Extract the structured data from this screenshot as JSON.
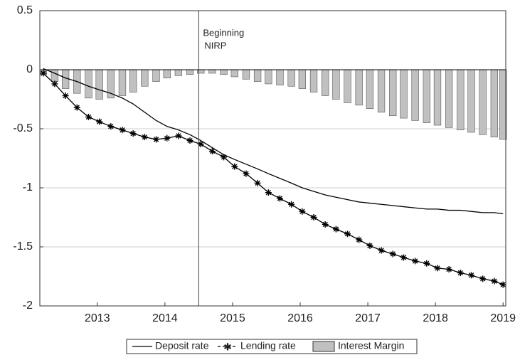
{
  "chart_data": {
    "type": "line",
    "annotation": {
      "x": 2014.5,
      "lines": [
        "Beginning",
        "NIRP"
      ]
    },
    "x": [
      2012.2,
      2012.37,
      2012.53,
      2012.7,
      2012.87,
      2013.03,
      2013.2,
      2013.37,
      2013.53,
      2013.7,
      2013.87,
      2014.03,
      2014.2,
      2014.37,
      2014.53,
      2014.7,
      2014.87,
      2015.03,
      2015.2,
      2015.37,
      2015.53,
      2015.7,
      2015.87,
      2016.03,
      2016.2,
      2016.37,
      2016.53,
      2016.7,
      2016.87,
      2017.03,
      2017.2,
      2017.37,
      2017.53,
      2017.7,
      2017.87,
      2018.03,
      2018.2,
      2018.37,
      2018.53,
      2018.7,
      2018.87,
      2019.0
    ],
    "series": [
      {
        "name": "Deposit rate",
        "type": "line",
        "color": "#000000",
        "values": [
          0.01,
          -0.03,
          -0.07,
          -0.1,
          -0.14,
          -0.17,
          -0.2,
          -0.24,
          -0.29,
          -0.36,
          -0.43,
          -0.48,
          -0.51,
          -0.55,
          -0.6,
          -0.66,
          -0.72,
          -0.76,
          -0.8,
          -0.84,
          -0.88,
          -0.92,
          -0.96,
          -1.0,
          -1.03,
          -1.06,
          -1.08,
          -1.1,
          -1.12,
          -1.13,
          -1.14,
          -1.15,
          -1.16,
          -1.17,
          -1.18,
          -1.18,
          -1.19,
          -1.19,
          -1.2,
          -1.21,
          -1.21,
          -1.22
        ]
      },
      {
        "name": "Lending rate",
        "type": "line-star",
        "color": "#000000",
        "values": [
          -0.03,
          -0.12,
          -0.22,
          -0.32,
          -0.4,
          -0.44,
          -0.48,
          -0.51,
          -0.54,
          -0.57,
          -0.59,
          -0.58,
          -0.56,
          -0.6,
          -0.63,
          -0.69,
          -0.74,
          -0.82,
          -0.88,
          -0.96,
          -1.04,
          -1.09,
          -1.14,
          -1.2,
          -1.25,
          -1.31,
          -1.35,
          -1.39,
          -1.44,
          -1.49,
          -1.53,
          -1.56,
          -1.59,
          -1.62,
          -1.64,
          -1.68,
          -1.69,
          -1.72,
          -1.74,
          -1.77,
          -1.79,
          -1.82
        ]
      },
      {
        "name": "Interest Margin",
        "type": "bar",
        "color": "#c0c0c0",
        "values": [
          -0.04,
          -0.1,
          -0.16,
          -0.2,
          -0.24,
          -0.25,
          -0.24,
          -0.22,
          -0.19,
          -0.14,
          -0.1,
          -0.07,
          -0.05,
          -0.04,
          -0.03,
          -0.03,
          -0.04,
          -0.06,
          -0.08,
          -0.1,
          -0.12,
          -0.13,
          -0.14,
          -0.16,
          -0.19,
          -0.22,
          -0.25,
          -0.28,
          -0.3,
          -0.33,
          -0.36,
          -0.39,
          -0.41,
          -0.43,
          -0.45,
          -0.47,
          -0.49,
          -0.51,
          -0.53,
          -0.55,
          -0.57,
          -0.59
        ]
      }
    ],
    "xlim": [
      2012.15,
      2019.04
    ],
    "xticks": [
      2013,
      2014,
      2015,
      2016,
      2017,
      2018,
      2019
    ],
    "ylim": [
      -2,
      0.5
    ],
    "yticks": [
      0.5,
      0,
      -0.5,
      -1,
      -1.5,
      -2
    ],
    "grid": true,
    "legend": "bottom"
  }
}
